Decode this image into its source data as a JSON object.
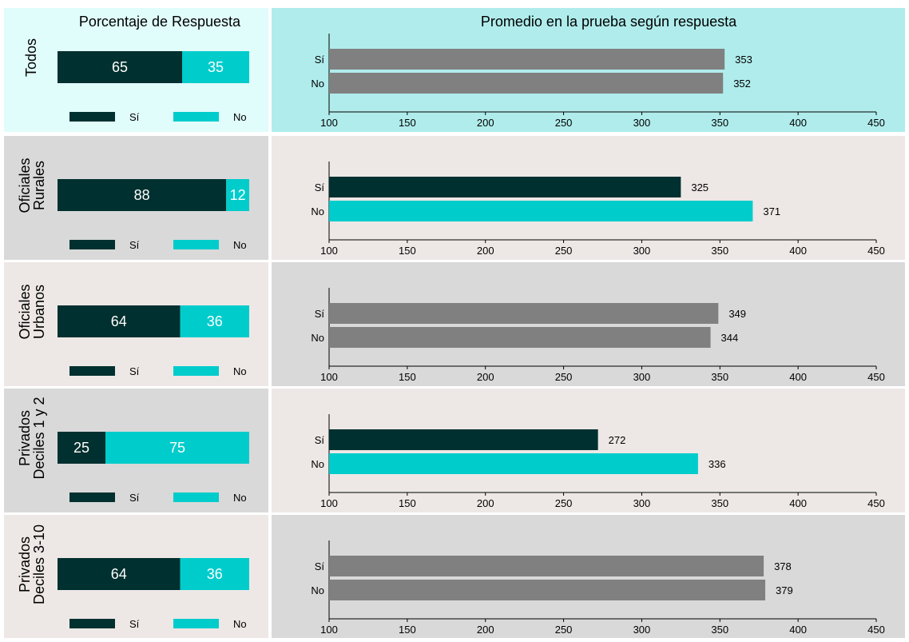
{
  "headers": {
    "left": "Porcentaje de Respuesta",
    "right": "Promedio en la prueba según respuesta"
  },
  "legend": {
    "yes": "Sí",
    "no": "No"
  },
  "colors": {
    "yes": "#00302f",
    "no": "#00cccc",
    "gray_bar": "#808080",
    "row_bg_odd": "#d9d9d9",
    "row_bg_even": "#ede8e6",
    "first_left_bg": "#e0fcfb",
    "first_right_bg": "#b0ecec"
  },
  "chart_data": [
    {
      "type": "bar",
      "group": "Todos",
      "label_lines": [
        "Todos"
      ],
      "response_pct": {
        "yes": 65,
        "no": 35
      },
      "categories": [
        "Sí",
        "No"
      ],
      "values": [
        353,
        352
      ],
      "highlighted": false,
      "xlim": [
        100,
        450
      ],
      "xticks": [
        100,
        150,
        200,
        250,
        300,
        350,
        400,
        450
      ]
    },
    {
      "type": "bar",
      "group": "Oficiales Rurales",
      "label_lines": [
        "Oficiales",
        "Rurales"
      ],
      "response_pct": {
        "yes": 88,
        "no": 12
      },
      "categories": [
        "Sí",
        "No"
      ],
      "values": [
        325,
        371
      ],
      "highlighted": true,
      "xlim": [
        100,
        450
      ],
      "xticks": [
        100,
        150,
        200,
        250,
        300,
        350,
        400,
        450
      ]
    },
    {
      "type": "bar",
      "group": "Oficiales Urbanos",
      "label_lines": [
        "Oficiales",
        "Urbanos"
      ],
      "response_pct": {
        "yes": 64,
        "no": 36
      },
      "categories": [
        "Sí",
        "No"
      ],
      "values": [
        349,
        344
      ],
      "highlighted": false,
      "xlim": [
        100,
        450
      ],
      "xticks": [
        100,
        150,
        200,
        250,
        300,
        350,
        400,
        450
      ]
    },
    {
      "type": "bar",
      "group": "Privados Deciles 1 y 2",
      "label_lines": [
        "Privados",
        "Deciles 1 y 2"
      ],
      "response_pct": {
        "yes": 25,
        "no": 75
      },
      "categories": [
        "Sí",
        "No"
      ],
      "values": [
        272,
        336
      ],
      "highlighted": true,
      "xlim": [
        100,
        450
      ],
      "xticks": [
        100,
        150,
        200,
        250,
        300,
        350,
        400,
        450
      ]
    },
    {
      "type": "bar",
      "group": "Privados Deciles 3-10",
      "label_lines": [
        "Privados",
        "Deciles 3-10"
      ],
      "response_pct": {
        "yes": 64,
        "no": 36
      },
      "categories": [
        "Sí",
        "No"
      ],
      "values": [
        378,
        379
      ],
      "highlighted": false,
      "xlim": [
        100,
        450
      ],
      "xticks": [
        100,
        150,
        200,
        250,
        300,
        350,
        400,
        450
      ]
    }
  ]
}
